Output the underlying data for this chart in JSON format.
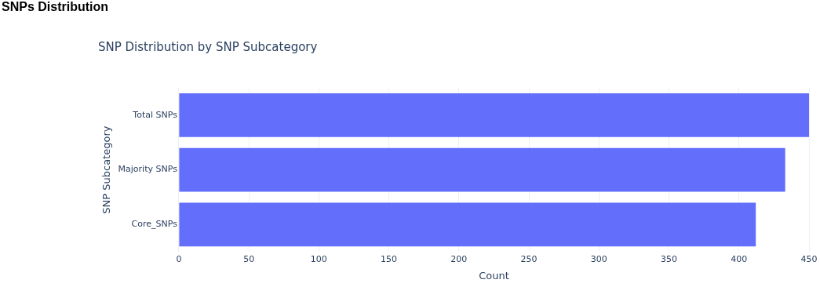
{
  "chart_data": {
    "type": "bar",
    "title": "SNPs Distribution",
    "subtitle": "SNP Distribution by SNP Subcategory",
    "xlabel": "Count",
    "ylabel": "SNP Subcategory",
    "orientation": "horizontal",
    "categories": [
      "Total SNPs",
      "Majority SNPs",
      "Core_SNPs"
    ],
    "values": [
      450,
      433,
      412
    ],
    "color": "#636efa",
    "xlim": [
      0,
      450
    ],
    "xticks": [
      0,
      50,
      100,
      150,
      200,
      250,
      300,
      350,
      400,
      450
    ],
    "grid": "x",
    "legend": false
  }
}
